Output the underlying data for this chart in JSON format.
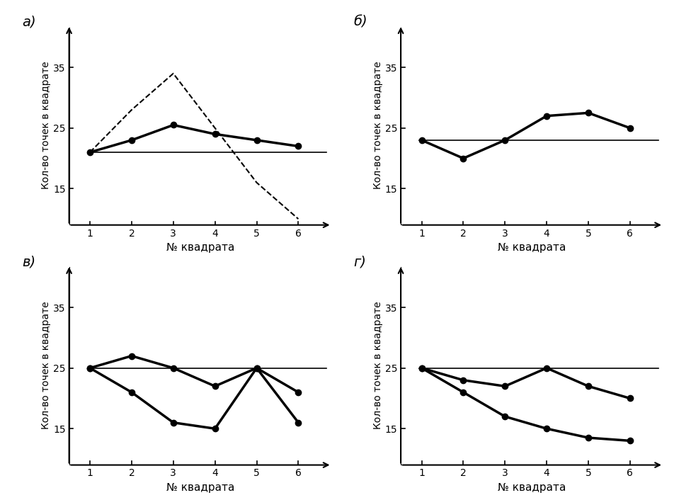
{
  "x": [
    1,
    2,
    3,
    4,
    5,
    6
  ],
  "a_main": [
    21,
    23,
    25.5,
    24,
    23,
    22
  ],
  "a_dashed": [
    21,
    28,
    34,
    25,
    16,
    10
  ],
  "a_hline": 21,
  "b_main": [
    23,
    20,
    23,
    27,
    27.5,
    25
  ],
  "b_hline": 23,
  "v_line1": [
    25,
    27,
    25,
    22,
    25,
    21
  ],
  "v_line2": [
    25,
    21,
    16,
    15,
    25,
    16
  ],
  "v_hline": 25,
  "g_line1": [
    25,
    23,
    22,
    25,
    22,
    20
  ],
  "g_line2": [
    25,
    21,
    17,
    15,
    13.5,
    13
  ],
  "g_hline": 25,
  "ylabel": "Кол-во точек в квадрате",
  "xlabel": "№ квадрата",
  "label_a": "а)",
  "label_b": "б)",
  "label_v": "в)",
  "label_g": "г)",
  "yticks_ab": [
    15,
    25,
    35
  ],
  "yticks_vg": [
    15,
    25,
    35
  ],
  "xlim": [
    0.5,
    6.8
  ],
  "ylim": [
    9,
    42
  ],
  "bg_color": "#f0f0f0"
}
